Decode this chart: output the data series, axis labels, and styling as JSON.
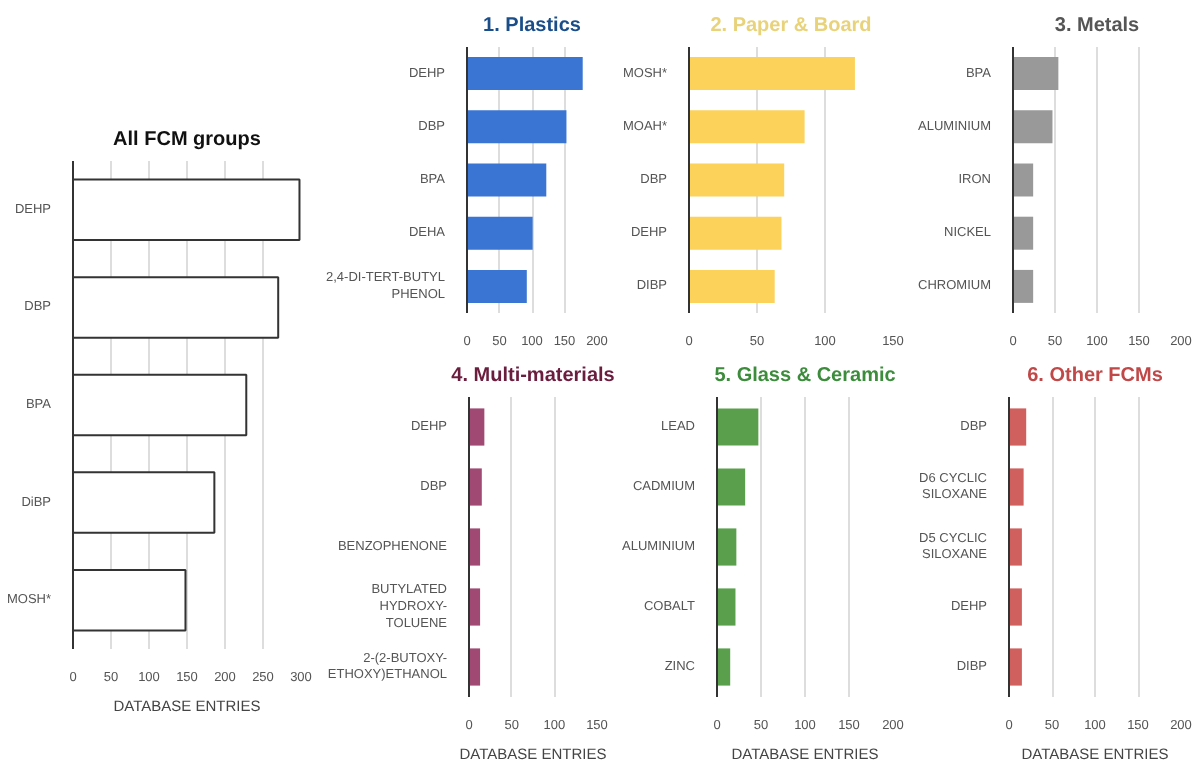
{
  "chart_data": [
    {
      "type": "bar",
      "orientation": "horizontal",
      "title": "All FCM groups",
      "xlabel": "DATABASE ENTRIES",
      "categories": [
        "DEHP",
        "DBP",
        "BPA",
        "DiBP",
        "MOSH*"
      ],
      "values": [
        298,
        270,
        228,
        186,
        148
      ],
      "color": "#ffffff",
      "xlim": [
        0,
        300
      ],
      "xticks": [
        0,
        50,
        100,
        150,
        200,
        250,
        300
      ],
      "grid": "x"
    },
    {
      "type": "bar",
      "orientation": "horizontal",
      "title": "1. Plastics",
      "categories": [
        "DEHP",
        "DBP",
        "BPA",
        "DEHA",
        "2,4-DI-TERT-BUTYL\nPHENOL"
      ],
      "values": [
        178,
        153,
        122,
        101,
        92
      ],
      "color": "#3a75d4",
      "xlim": [
        0,
        200
      ],
      "xticks": [
        0,
        50,
        100,
        150,
        200
      ],
      "grid": "x"
    },
    {
      "type": "bar",
      "orientation": "horizontal",
      "title": "2. Paper & Board",
      "categories": [
        "MOSH*",
        "MOAH*",
        "DBP",
        "DEHP",
        "DIBP"
      ],
      "values": [
        122,
        85,
        70,
        68,
        63
      ],
      "color": "#fcd25a",
      "xlim": [
        0,
        150
      ],
      "xticks": [
        0,
        50,
        100,
        150
      ],
      "grid": "x"
    },
    {
      "type": "bar",
      "orientation": "horizontal",
      "title": "3. Metals",
      "categories": [
        "BPA",
        "ALUMINIUM",
        "IRON",
        "NICKEL",
        "CHROMIUM"
      ],
      "values": [
        54,
        47,
        24,
        24,
        24
      ],
      "color": "#999999",
      "xlim": [
        0,
        200
      ],
      "xticks": [
        0,
        50,
        100,
        150,
        200
      ],
      "grid": "x"
    },
    {
      "type": "bar",
      "orientation": "horizontal",
      "title": "4. Multi-materials",
      "xlabel": "DATABASE ENTRIES",
      "categories": [
        "DEHP",
        "DBP",
        "BENZOPHENONE",
        "BUTYLATED\nHYDROXY-\nTOLUENE",
        "2-(2-BUTOXY-\nETHOXY)ETHANOL"
      ],
      "values": [
        18,
        15,
        13,
        13,
        13
      ],
      "color": "#a04a73",
      "xlim": [
        0,
        150
      ],
      "xticks": [
        0,
        50,
        100,
        150
      ],
      "grid": "x"
    },
    {
      "type": "bar",
      "orientation": "horizontal",
      "title": "5. Glass & Ceramic",
      "xlabel": "DATABASE ENTRIES",
      "categories": [
        "LEAD",
        "CADMIUM",
        "ALUMINIUM",
        "COBALT",
        "ZINC"
      ],
      "values": [
        47,
        32,
        22,
        21,
        15
      ],
      "color": "#5aa04c",
      "xlim": [
        0,
        200
      ],
      "xticks": [
        0,
        50,
        100,
        150,
        200
      ],
      "grid": "x"
    },
    {
      "type": "bar",
      "orientation": "horizontal",
      "title": "6. Other FCMs",
      "xlabel": "DATABASE ENTRIES",
      "categories": [
        "DBP",
        "D6 CYCLIC\nSILOXANE",
        "D5 CYCLIC\nSILOXANE",
        "DEHP",
        "DIBP"
      ],
      "values": [
        20,
        17,
        15,
        15,
        15
      ],
      "color": "#d0605e",
      "xlim": [
        0,
        200
      ],
      "xticks": [
        0,
        50,
        100,
        150,
        200
      ],
      "grid": "x"
    }
  ]
}
